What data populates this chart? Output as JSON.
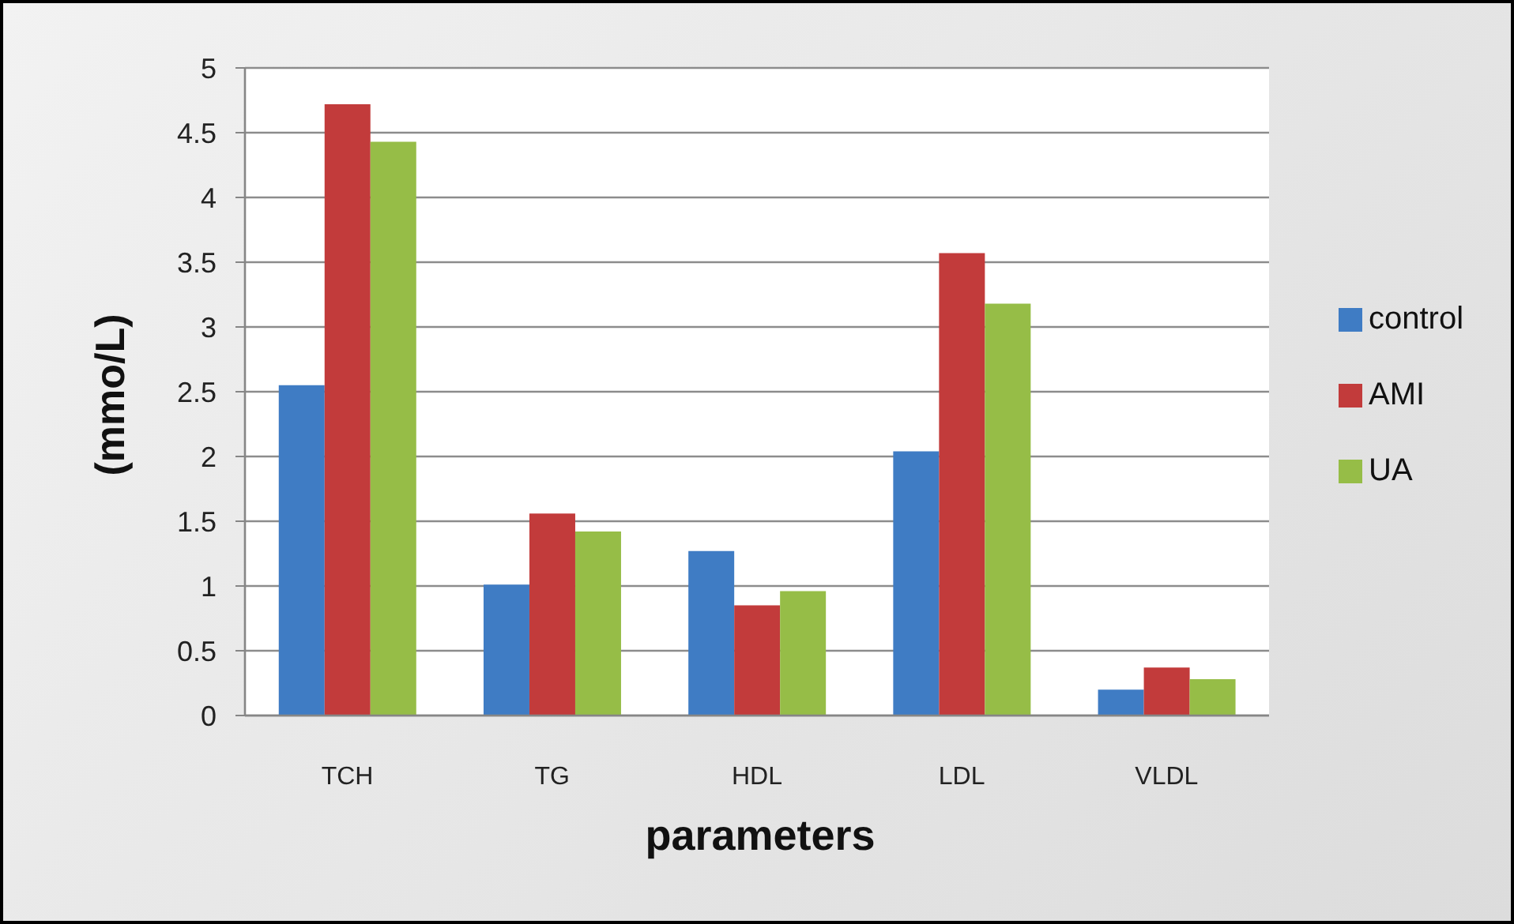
{
  "chart_data": {
    "type": "bar",
    "xlabel": "parameters",
    "ylabel": "(mmo/L)",
    "categories": [
      "TCH",
      "TG",
      "HDL",
      "LDL",
      "VLDL"
    ],
    "series": [
      {
        "name": "control",
        "color": "#3f7cc4",
        "values": [
          2.55,
          1.01,
          1.27,
          2.04,
          0.2
        ]
      },
      {
        "name": "AMI",
        "color": "#c23b3b",
        "values": [
          4.72,
          1.56,
          0.85,
          3.57,
          0.37
        ]
      },
      {
        "name": "UA",
        "color": "#96bd47",
        "values": [
          4.43,
          1.42,
          0.96,
          3.18,
          0.28
        ]
      }
    ],
    "ylim": [
      0,
      5
    ],
    "yticks": [
      0,
      0.5,
      1,
      1.5,
      2,
      2.5,
      3,
      3.5,
      4,
      4.5,
      5
    ],
    "grid": "y",
    "legend": "right"
  }
}
